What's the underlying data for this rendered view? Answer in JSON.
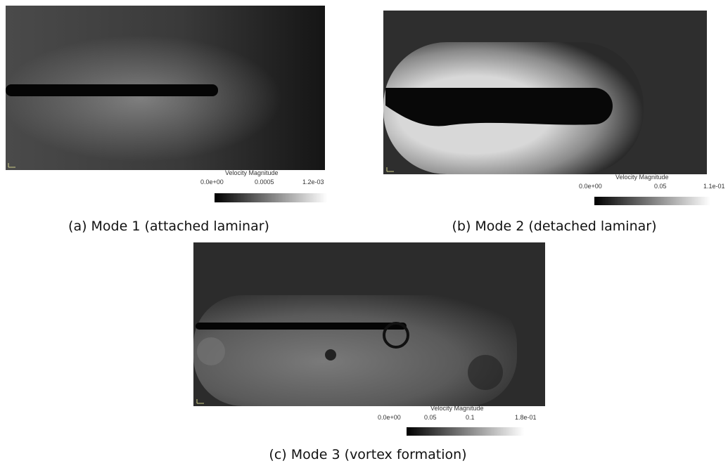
{
  "panels": [
    {
      "colorbar": {
        "title": "Velocity Magnitude",
        "ticks": [
          "0.0e+00",
          "0.0005",
          "1.2e-03"
        ]
      },
      "caption": "(a) Mode 1 (attached laminar)"
    },
    {
      "colorbar": {
        "title": "Velocity Magnitude",
        "ticks": [
          "0.0e+00",
          "0.05",
          "1.1e-01"
        ]
      },
      "caption": "(b) Mode 2 (detached laminar)"
    },
    {
      "colorbar": {
        "title": "Velocity Magnitude",
        "ticks": [
          "0.0e+00",
          "0.05",
          "0.1",
          "1.8e-01"
        ]
      },
      "caption": "(c) Mode 3 (vortex formation)"
    }
  ]
}
